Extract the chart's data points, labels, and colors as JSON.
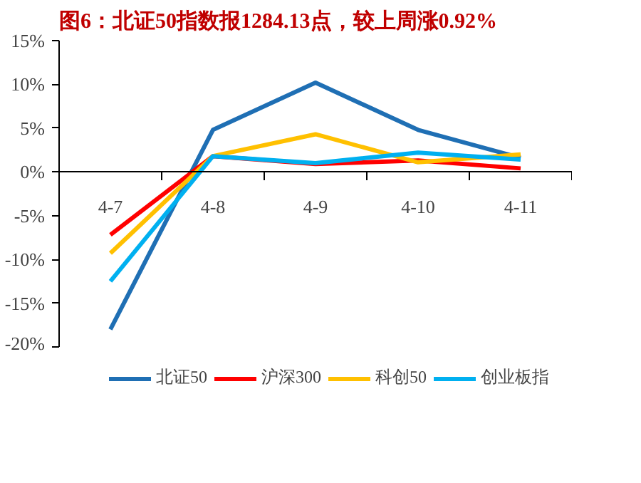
{
  "chart_data": {
    "type": "line",
    "title": "图6：北证50指数报1284.13点，较上周涨0.92%",
    "categories": [
      "4-7",
      "4-8",
      "4-9",
      "4-10",
      "4-11"
    ],
    "series": [
      {
        "name": "北证50",
        "color": "#1f6fb4",
        "values": [
          -18,
          4.8,
          10.2,
          4.8,
          1.6
        ]
      },
      {
        "name": "沪深300",
        "color": "#ff0000",
        "values": [
          -7.2,
          1.8,
          0.9,
          1.3,
          0.4
        ]
      },
      {
        "name": "科创50",
        "color": "#ffc000",
        "values": [
          -9.3,
          1.8,
          4.3,
          1.1,
          2.0
        ]
      },
      {
        "name": "创业板指",
        "color": "#00b0f0",
        "values": [
          -12.5,
          1.8,
          1.0,
          2.2,
          1.4
        ]
      }
    ],
    "ylim": [
      -20,
      15
    ],
    "yticks": [
      {
        "value": -20,
        "label": "-20%"
      },
      {
        "value": -15,
        "label": "-15%"
      },
      {
        "value": -10,
        "label": "-10%"
      },
      {
        "value": -5,
        "label": "-5%"
      },
      {
        "value": 0,
        "label": "0%"
      },
      {
        "value": 5,
        "label": "5%"
      },
      {
        "value": 10,
        "label": "10%"
      },
      {
        "value": 15,
        "label": "15%"
      }
    ],
    "grid": false,
    "legend": "bottom",
    "marker": "none",
    "line_style": "solid"
  }
}
